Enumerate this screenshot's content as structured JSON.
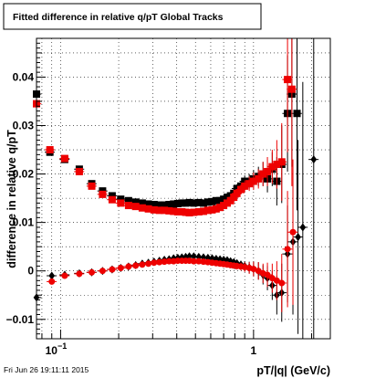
{
  "chart_data": {
    "type": "scatter",
    "title": "Fitted difference in relative q/pT  Global Tracks",
    "xlabel": "pT/|q| (GeV/c)",
    "ylabel": "difference in relative q/pT",
    "x_scale": "log",
    "xlim": [
      0.075,
      2.5
    ],
    "ylim": [
      -0.014,
      0.048
    ],
    "grid": true,
    "x_tick_labels": [
      {
        "value": 0.1,
        "base": "10",
        "exponent": "−1"
      },
      {
        "value": 1,
        "base": "1",
        "exponent": ""
      }
    ],
    "y_ticks": [
      -0.01,
      0,
      0.01,
      0.02,
      0.03,
      0.04
    ],
    "y_tick_labels": [
      "−0.01",
      "0",
      "0.01",
      "0.02",
      "0.03",
      "0.04"
    ],
    "series": [
      {
        "color": "#000000",
        "marker": "square",
        "x": [
          0.075,
          0.088,
          0.105,
          0.125,
          0.145,
          0.165,
          0.185,
          0.205,
          0.225,
          0.245,
          0.265,
          0.285,
          0.305,
          0.325,
          0.345,
          0.365,
          0.385,
          0.405,
          0.425,
          0.445,
          0.465,
          0.49,
          0.52,
          0.55,
          0.58,
          0.61,
          0.64,
          0.67,
          0.7,
          0.73,
          0.76,
          0.79,
          0.82,
          0.86,
          0.9,
          0.95,
          1.0,
          1.06,
          1.12,
          1.18,
          1.25,
          1.32,
          1.4,
          1.5,
          1.58,
          1.68
        ],
        "y": [
          0.0365,
          0.0245,
          0.023,
          0.021,
          0.018,
          0.0165,
          0.0155,
          0.0148,
          0.0145,
          0.0142,
          0.014,
          0.0138,
          0.0137,
          0.0136,
          0.0136,
          0.0137,
          0.0138,
          0.0139,
          0.014,
          0.014,
          0.0141,
          0.014,
          0.0141,
          0.014,
          0.0142,
          0.0143,
          0.0145,
          0.0145,
          0.0148,
          0.0152,
          0.0155,
          0.016,
          0.017,
          0.0175,
          0.0185,
          0.0185,
          0.019,
          0.0195,
          0.02,
          0.019,
          0.021,
          0.0185,
          0.022,
          0.0325,
          0.0365,
          0.0325
        ],
        "yerr": [
          0.0008,
          0.0007,
          0.0006,
          0.0005,
          0.0005,
          0.0004,
          0.0004,
          0.0004,
          0.0004,
          0.0004,
          0.0004,
          0.0004,
          0.0004,
          0.0004,
          0.0004,
          0.0004,
          0.0004,
          0.0004,
          0.0004,
          0.0004,
          0.0004,
          0.0004,
          0.0004,
          0.0004,
          0.0004,
          0.0005,
          0.0005,
          0.0005,
          0.0006,
          0.0006,
          0.0007,
          0.0008,
          0.0009,
          0.001,
          0.0012,
          0.0015,
          0.0018,
          0.002,
          0.0025,
          0.0028,
          0.0035,
          0.005,
          0.008,
          0.012,
          0.015,
          0.02
        ]
      },
      {
        "color": "#ee0000",
        "marker": "square",
        "x": [
          0.075,
          0.088,
          0.105,
          0.125,
          0.145,
          0.165,
          0.185,
          0.205,
          0.225,
          0.245,
          0.265,
          0.285,
          0.305,
          0.325,
          0.345,
          0.365,
          0.385,
          0.405,
          0.425,
          0.445,
          0.465,
          0.49,
          0.52,
          0.55,
          0.58,
          0.61,
          0.64,
          0.67,
          0.7,
          0.73,
          0.76,
          0.79,
          0.82,
          0.86,
          0.9,
          0.95,
          1.0,
          1.06,
          1.12,
          1.18,
          1.25,
          1.32,
          1.4,
          1.5,
          1.58
        ],
        "y": [
          0.0345,
          0.025,
          0.0232,
          0.0205,
          0.0175,
          0.0158,
          0.0147,
          0.014,
          0.0135,
          0.0133,
          0.013,
          0.0128,
          0.0126,
          0.0125,
          0.0125,
          0.0124,
          0.0123,
          0.0122,
          0.0122,
          0.0121,
          0.012,
          0.0121,
          0.0122,
          0.0123,
          0.0125,
          0.0126,
          0.0128,
          0.0131,
          0.0135,
          0.014,
          0.0145,
          0.0152,
          0.016,
          0.0168,
          0.0175,
          0.018,
          0.0185,
          0.019,
          0.02,
          0.0205,
          0.0215,
          0.022,
          0.0225,
          0.0395,
          0.0375
        ],
        "yerr": [
          0.0008,
          0.0007,
          0.0006,
          0.0005,
          0.0005,
          0.0004,
          0.0004,
          0.0004,
          0.0004,
          0.0004,
          0.0004,
          0.0004,
          0.0004,
          0.0004,
          0.0004,
          0.0004,
          0.0004,
          0.0004,
          0.0004,
          0.0004,
          0.0004,
          0.0004,
          0.0004,
          0.0004,
          0.0004,
          0.0005,
          0.0005,
          0.0005,
          0.0006,
          0.0006,
          0.0007,
          0.0008,
          0.0009,
          0.001,
          0.0012,
          0.0015,
          0.0018,
          0.002,
          0.0025,
          0.003,
          0.0035,
          0.005,
          0.008,
          0.015,
          0.02
        ]
      },
      {
        "color": "#000000",
        "marker": "diamond",
        "x": [
          0.075,
          0.09,
          0.105,
          0.125,
          0.145,
          0.165,
          0.185,
          0.205,
          0.225,
          0.245,
          0.265,
          0.285,
          0.305,
          0.325,
          0.345,
          0.365,
          0.385,
          0.405,
          0.425,
          0.445,
          0.465,
          0.49,
          0.52,
          0.55,
          0.58,
          0.61,
          0.64,
          0.67,
          0.7,
          0.73,
          0.76,
          0.79,
          0.82,
          0.86,
          0.9,
          0.95,
          1.0,
          1.06,
          1.12,
          1.18,
          1.25,
          1.32,
          1.4,
          1.5,
          1.6,
          1.7,
          1.8,
          2.05
        ],
        "y": [
          -0.0055,
          -0.001,
          -0.0008,
          -0.0005,
          -0.0003,
          0.0,
          0.0003,
          0.0006,
          0.0009,
          0.0012,
          0.0015,
          0.0017,
          0.0019,
          0.0021,
          0.0023,
          0.0024,
          0.0026,
          0.0027,
          0.0028,
          0.0029,
          0.003,
          0.003,
          0.0029,
          0.0028,
          0.0027,
          0.0026,
          0.0025,
          0.0024,
          0.0023,
          0.0022,
          0.002,
          0.0018,
          0.0016,
          0.0013,
          0.001,
          0.0007,
          0.0004,
          0.0,
          -0.0008,
          -0.0015,
          -0.003,
          -0.005,
          -0.0045,
          0.0035,
          0.006,
          0.007,
          0.009,
          0.023
        ],
        "yerr": [
          0.0008,
          0.0006,
          0.0005,
          0.0004,
          0.0004,
          0.0003,
          0.0003,
          0.0003,
          0.0003,
          0.0003,
          0.0003,
          0.0003,
          0.0003,
          0.0003,
          0.0003,
          0.0003,
          0.0003,
          0.0003,
          0.0003,
          0.0003,
          0.0003,
          0.0003,
          0.0003,
          0.0003,
          0.0003,
          0.0003,
          0.0004,
          0.0004,
          0.0004,
          0.0005,
          0.0005,
          0.0006,
          0.0007,
          0.0008,
          0.001,
          0.0012,
          0.0015,
          0.0018,
          0.002,
          0.0025,
          0.003,
          0.004,
          0.006,
          0.01,
          0.015,
          0.02,
          0.03,
          0.04
        ]
      },
      {
        "color": "#ee0000",
        "marker": "circle",
        "x": [
          0.09,
          0.105,
          0.125,
          0.145,
          0.165,
          0.185,
          0.205,
          0.225,
          0.245,
          0.265,
          0.285,
          0.305,
          0.325,
          0.345,
          0.365,
          0.385,
          0.405,
          0.425,
          0.445,
          0.465,
          0.49,
          0.52,
          0.55,
          0.58,
          0.61,
          0.64,
          0.67,
          0.7,
          0.73,
          0.76,
          0.79,
          0.82,
          0.86,
          0.9,
          0.95,
          1.0,
          1.06,
          1.12,
          1.18,
          1.25,
          1.32,
          1.4,
          1.5,
          1.6
        ],
        "y": [
          -0.0022,
          -0.001,
          -0.0006,
          -0.0003,
          0.0,
          0.0003,
          0.0006,
          0.0009,
          0.0011,
          0.0013,
          0.0015,
          0.0017,
          0.0018,
          0.0019,
          0.002,
          0.002,
          0.0021,
          0.0021,
          0.0021,
          0.0021,
          0.002,
          0.002,
          0.0019,
          0.0018,
          0.0017,
          0.0016,
          0.0015,
          0.0014,
          0.0013,
          0.0012,
          0.0011,
          0.001,
          0.0009,
          0.0008,
          0.0006,
          0.0004,
          0.0,
          -0.0005,
          -0.0008,
          -0.0015,
          -0.002,
          -0.0025,
          0.0045,
          0.008
        ],
        "yerr": [
          0.0006,
          0.0005,
          0.0004,
          0.0004,
          0.0003,
          0.0003,
          0.0003,
          0.0003,
          0.0003,
          0.0003,
          0.0003,
          0.0003,
          0.0003,
          0.0003,
          0.0003,
          0.0003,
          0.0003,
          0.0003,
          0.0003,
          0.0003,
          0.0003,
          0.0003,
          0.0003,
          0.0003,
          0.0003,
          0.0004,
          0.0004,
          0.0004,
          0.0005,
          0.0005,
          0.0006,
          0.0007,
          0.0008,
          0.001,
          0.0012,
          0.0015,
          0.0018,
          0.002,
          0.0025,
          0.003,
          0.004,
          0.006,
          0.012,
          0.015
        ]
      }
    ]
  },
  "footer": "Fri Jun 26 19:11:11 2015"
}
